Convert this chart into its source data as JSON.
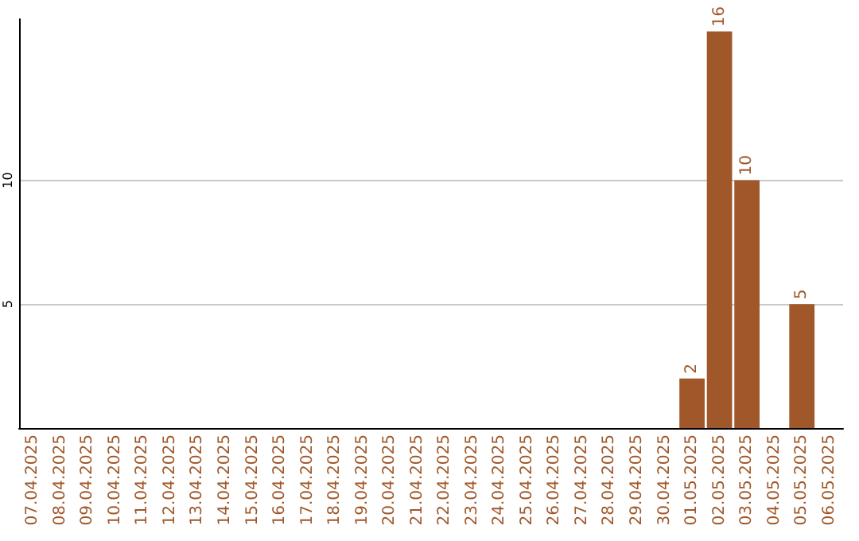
{
  "chart_data": {
    "type": "bar",
    "categories": [
      "07.04.2025",
      "08.04.2025",
      "09.04.2025",
      "10.04.2025",
      "11.04.2025",
      "12.04.2025",
      "13.04.2025",
      "14.04.2025",
      "15.04.2025",
      "16.04.2025",
      "17.04.2025",
      "18.04.2025",
      "19.04.2025",
      "20.04.2025",
      "21.04.2025",
      "22.04.2025",
      "23.04.2025",
      "24.04.2025",
      "25.04.2025",
      "26.04.2025",
      "27.04.2025",
      "28.04.2025",
      "29.04.2025",
      "30.04.2025",
      "01.05.2025",
      "02.05.2025",
      "03.05.2025",
      "04.05.2025",
      "05.05.2025",
      "06.05.2025"
    ],
    "values": [
      0,
      0,
      0,
      0,
      0,
      0,
      0,
      0,
      0,
      0,
      0,
      0,
      0,
      0,
      0,
      0,
      0,
      0,
      0,
      0,
      0,
      0,
      0,
      0,
      2,
      16,
      10,
      0,
      5,
      0
    ],
    "value_labels": [
      null,
      null,
      null,
      null,
      null,
      null,
      null,
      null,
      null,
      null,
      null,
      null,
      null,
      null,
      null,
      null,
      null,
      null,
      null,
      null,
      null,
      null,
      null,
      null,
      "2",
      "16",
      "10",
      null,
      "5",
      null
    ],
    "color": "#a0582a",
    "ylim": [
      0,
      16.5
    ],
    "yticks": [
      5,
      10
    ],
    "grid": "y"
  }
}
